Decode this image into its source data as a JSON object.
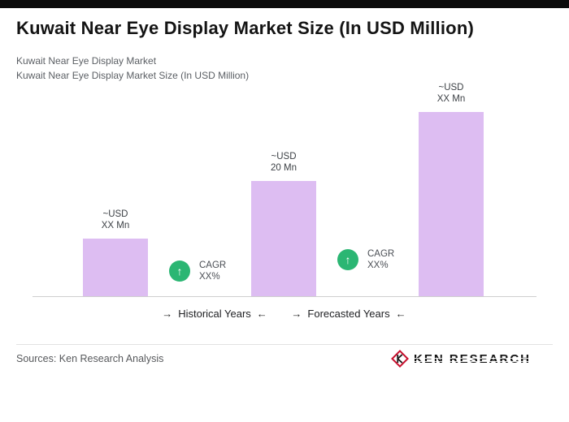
{
  "page": {
    "title": "Kuwait Near Eye Display Market Size (In USD Million)",
    "subtitle_line1": "Kuwait Near Eye Display Market",
    "subtitle_line2": "Kuwait Near Eye Display Market Size (In USD Million)"
  },
  "chart_data": {
    "type": "bar",
    "title": "Kuwait Near Eye Display Market Size (In USD Million)",
    "unit": "USD Million",
    "bar_color": "#ddbdf2",
    "ylim": [
      0,
      35
    ],
    "bars": [
      {
        "label_line1": "~USD",
        "label_line2": "XX Mn",
        "value_estimate": 10
      },
      {
        "label_line1": "~USD",
        "label_line2": "20 Mn",
        "value_estimate": 20
      },
      {
        "label_line1": "~USD",
        "label_line2": "XX Mn",
        "value_estimate": 32
      }
    ],
    "period_labels": [
      "Historical Years",
      "Forecasted Years"
    ],
    "cagr_badges": [
      {
        "line1": "CAGR",
        "line2": "XX%"
      },
      {
        "line1": "CAGR",
        "line2": "XX%"
      }
    ],
    "legend_position": "none",
    "grid": false
  },
  "icons": {
    "up_arrow": "↑",
    "right_arrow": "→",
    "left_arrow": "←"
  },
  "footer": {
    "sources": "Sources: Ken Research Analysis",
    "brand": "KEN RESEARCH",
    "logo_letter": "K"
  },
  "colors": {
    "bar": "#ddbdf2",
    "cagr_green": "#2bb673",
    "brand_red": "#c8102e",
    "topbar_black": "#0b0b0b"
  }
}
